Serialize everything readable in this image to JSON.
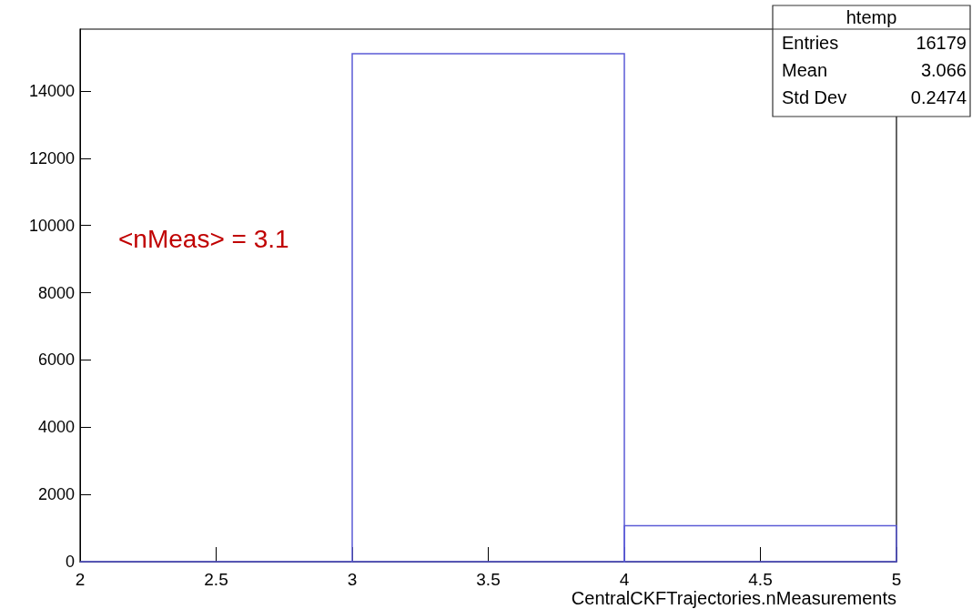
{
  "chart_data": {
    "type": "histogram",
    "xlabel": "CentralCKFTrajectories.nMeasurements",
    "bins": [
      2,
      3,
      4,
      5
    ],
    "values": [
      0,
      15110,
      1070
    ],
    "color": "#5b5bd6",
    "xlim": [
      2,
      5
    ],
    "xticks": [
      2,
      2.5,
      3,
      3.5,
      4,
      4.5,
      5
    ],
    "ylim": [
      0,
      15840
    ],
    "yticks": [
      0,
      2000,
      4000,
      6000,
      8000,
      10000,
      12000,
      14000
    ],
    "annotations": [
      "<nMeas> = 3.1",
      "htemp",
      "Entries",
      "16179",
      "Mean",
      "3.066",
      "Std Dev",
      "0.2474"
    ]
  }
}
